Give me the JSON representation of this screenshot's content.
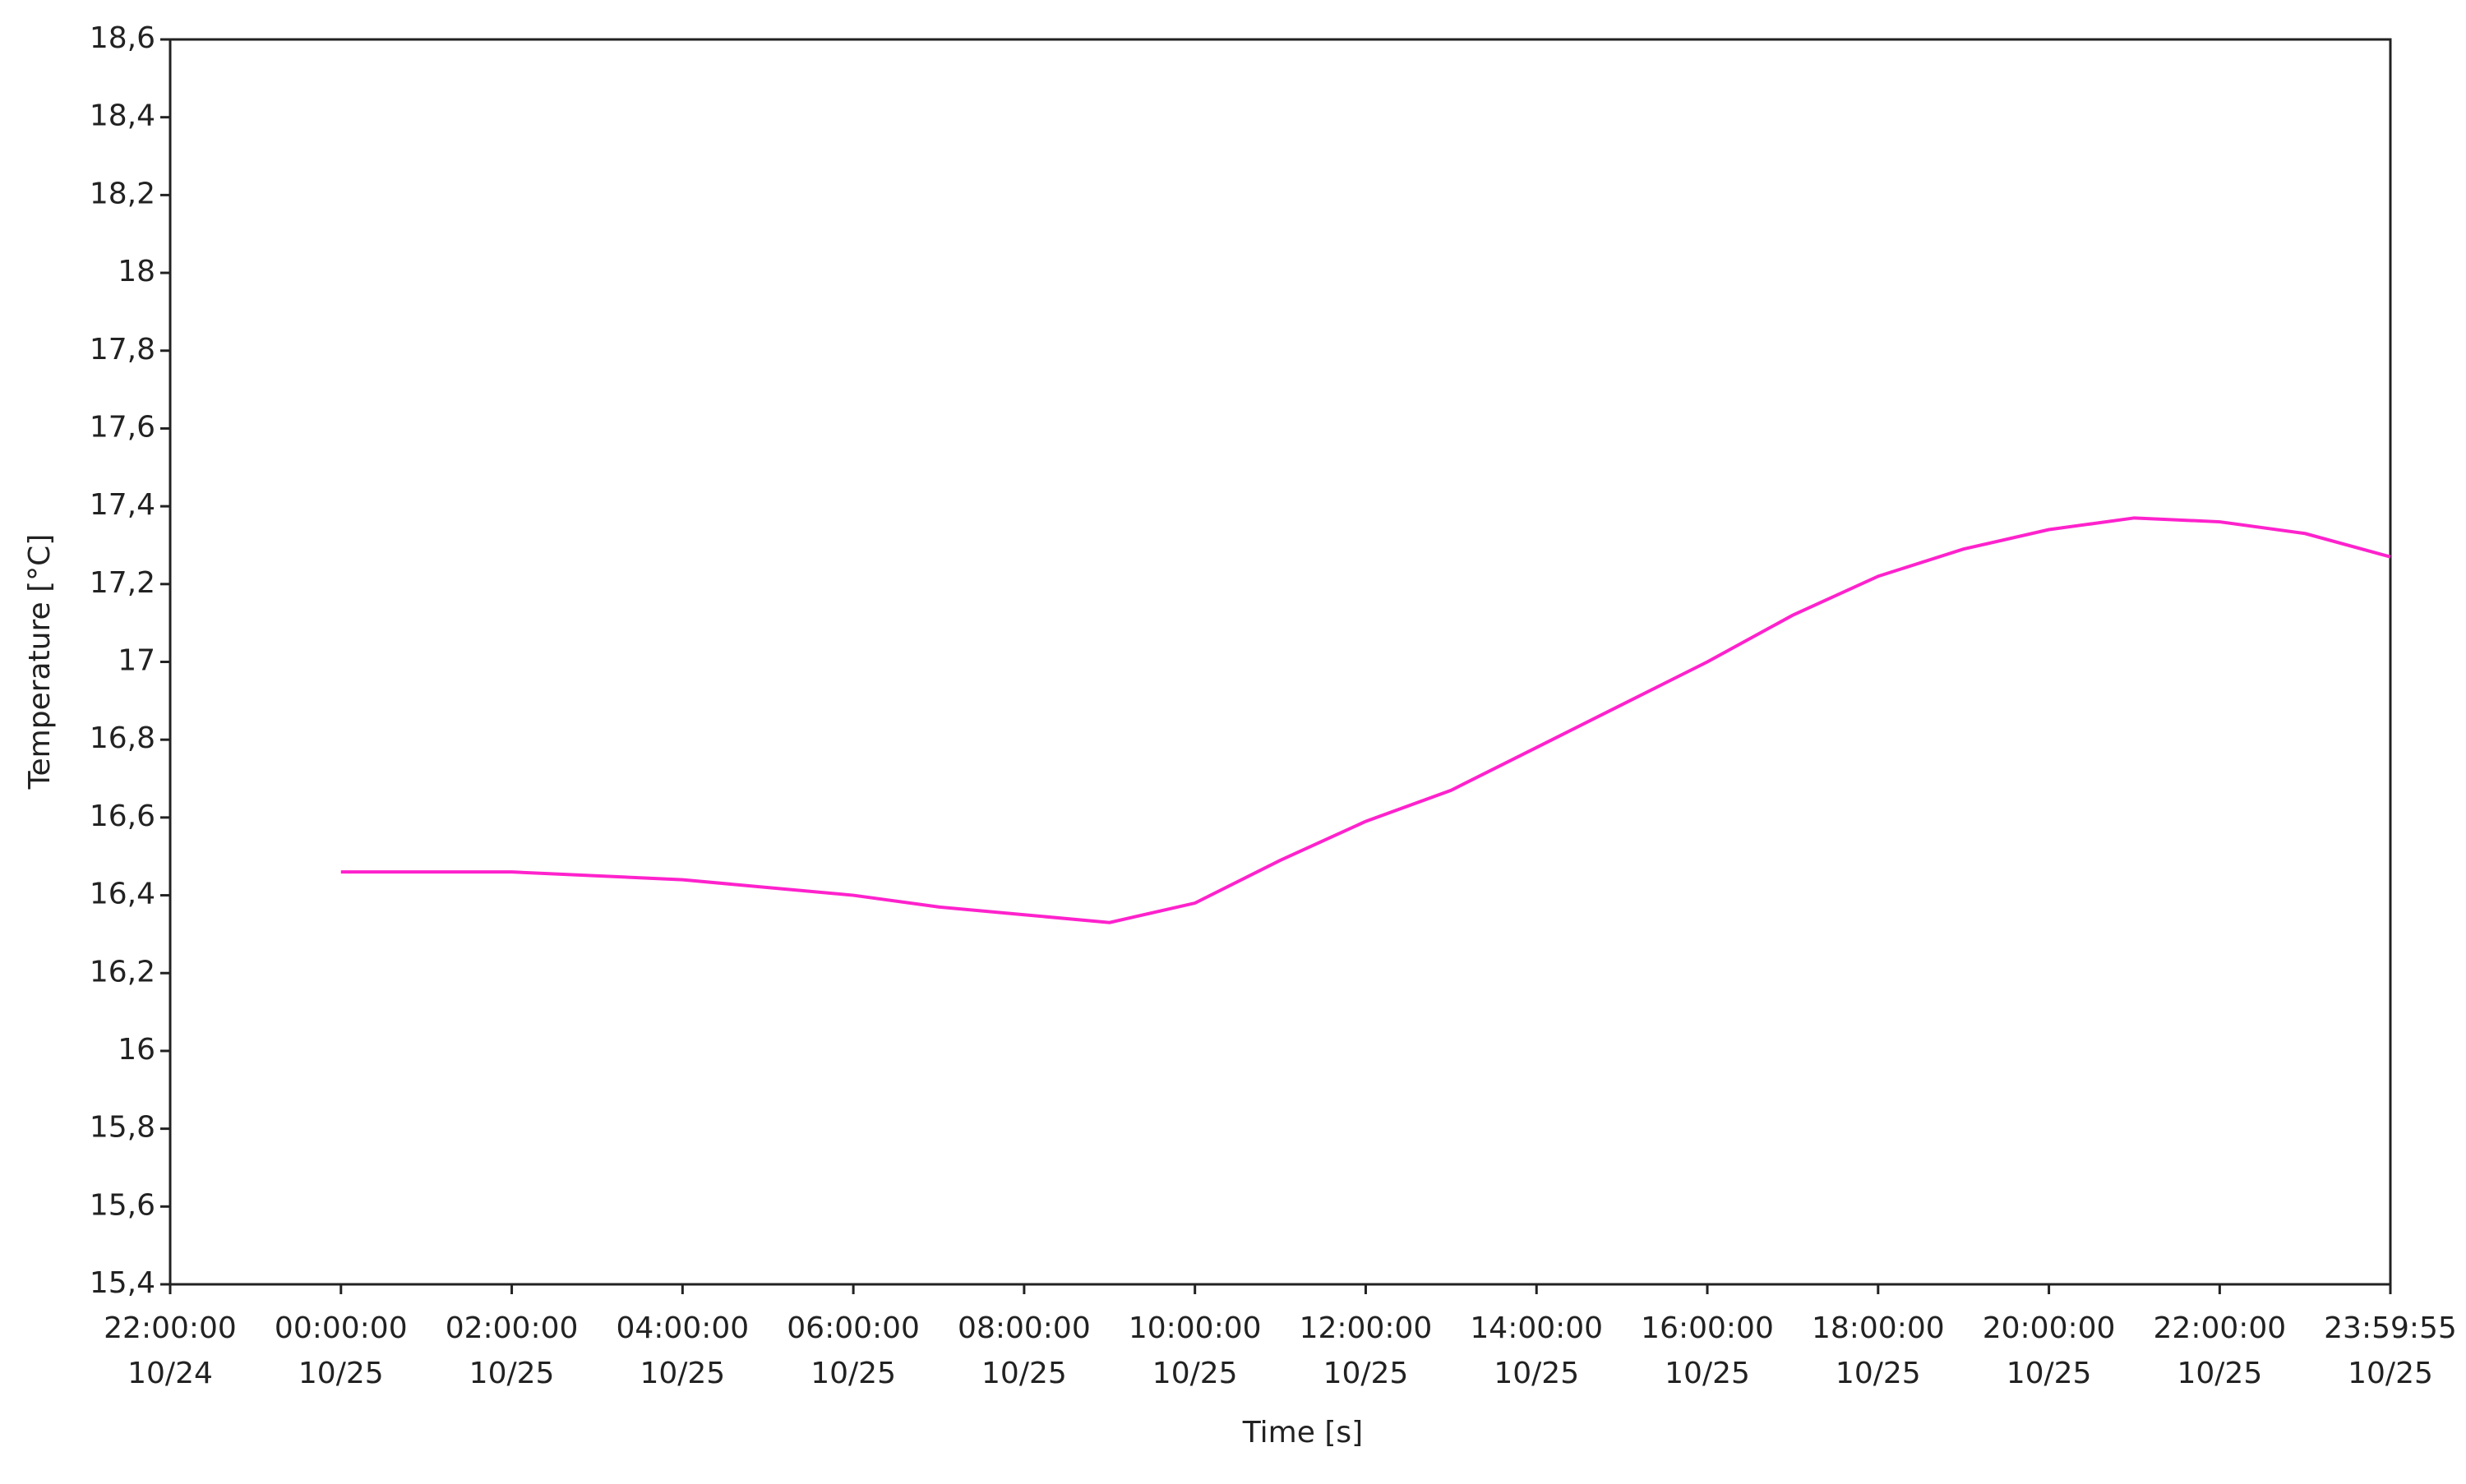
{
  "chart_data": {
    "type": "line",
    "x_label": "Time [s]",
    "y_label": "Temperature [°C]",
    "x": [
      "10/25 00:00:00",
      "10/25 01:00:00",
      "10/25 02:00:00",
      "10/25 03:00:00",
      "10/25 04:00:00",
      "10/25 05:00:00",
      "10/25 06:00:00",
      "10/25 07:00:00",
      "10/25 08:00:00",
      "10/25 09:00:00",
      "10/25 10:00:00",
      "10/25 11:00:00",
      "10/25 12:00:00",
      "10/25 13:00:00",
      "10/25 14:00:00",
      "10/25 15:00:00",
      "10/25 16:00:00",
      "10/25 17:00:00",
      "10/25 18:00:00",
      "10/25 19:00:00",
      "10/25 20:00:00",
      "10/25 21:00:00",
      "10/25 22:00:00",
      "10/25 23:00:00",
      "10/25 23:59:55"
    ],
    "series": [
      {
        "name": "Temperature",
        "color": "#ff22cc",
        "values": [
          16.46,
          16.46,
          16.46,
          16.45,
          16.44,
          16.42,
          16.4,
          16.37,
          16.35,
          16.33,
          16.38,
          16.49,
          16.59,
          16.67,
          16.78,
          16.89,
          17.0,
          17.12,
          17.22,
          17.29,
          17.34,
          17.37,
          17.36,
          17.33,
          17.27
        ]
      }
    ],
    "xlim": [
      "10/24 22:00:00",
      "10/25 23:59:55"
    ],
    "xticks": [
      {
        "value": "10/24 22:00:00",
        "label": [
          "22:00:00",
          "10/24"
        ]
      },
      {
        "value": "10/25 00:00:00",
        "label": [
          "00:00:00",
          "10/25"
        ]
      },
      {
        "value": "10/25 02:00:00",
        "label": [
          "02:00:00",
          "10/25"
        ]
      },
      {
        "value": "10/25 04:00:00",
        "label": [
          "04:00:00",
          "10/25"
        ]
      },
      {
        "value": "10/25 06:00:00",
        "label": [
          "06:00:00",
          "10/25"
        ]
      },
      {
        "value": "10/25 08:00:00",
        "label": [
          "08:00:00",
          "10/25"
        ]
      },
      {
        "value": "10/25 10:00:00",
        "label": [
          "10:00:00",
          "10/25"
        ]
      },
      {
        "value": "10/25 12:00:00",
        "label": [
          "12:00:00",
          "10/25"
        ]
      },
      {
        "value": "10/25 14:00:00",
        "label": [
          "14:00:00",
          "10/25"
        ]
      },
      {
        "value": "10/25 16:00:00",
        "label": [
          "16:00:00",
          "10/25"
        ]
      },
      {
        "value": "10/25 18:00:00",
        "label": [
          "18:00:00",
          "10/25"
        ]
      },
      {
        "value": "10/25 20:00:00",
        "label": [
          "20:00:00",
          "10/25"
        ]
      },
      {
        "value": "10/25 22:00:00",
        "label": [
          "22:00:00",
          "10/25"
        ]
      },
      {
        "value": "10/25 23:59:55",
        "label": [
          "23:59:55",
          "10/25"
        ]
      }
    ],
    "ylim": [
      15.4,
      18.6
    ],
    "yticks": [
      {
        "value": 15.4,
        "label": "15,4"
      },
      {
        "value": 15.6,
        "label": "15,6"
      },
      {
        "value": 15.8,
        "label": "15,8"
      },
      16,
      {
        "value": 16.2,
        "label": "16,2"
      },
      {
        "value": 16.4,
        "label": "16,4"
      },
      {
        "value": 16.6,
        "label": "16,6"
      },
      {
        "value": 16.8,
        "label": "16,8"
      },
      17,
      {
        "value": 17.2,
        "label": "17,2"
      },
      {
        "value": 17.4,
        "label": "17,4"
      },
      {
        "value": 17.6,
        "label": "17,6"
      },
      {
        "value": 17.8,
        "label": "17,8"
      },
      18,
      {
        "value": 18.2,
        "label": "18,2"
      },
      {
        "value": 18.4,
        "label": "18,4"
      },
      {
        "value": 18.6,
        "label": "18,6"
      }
    ],
    "grid": false
  }
}
